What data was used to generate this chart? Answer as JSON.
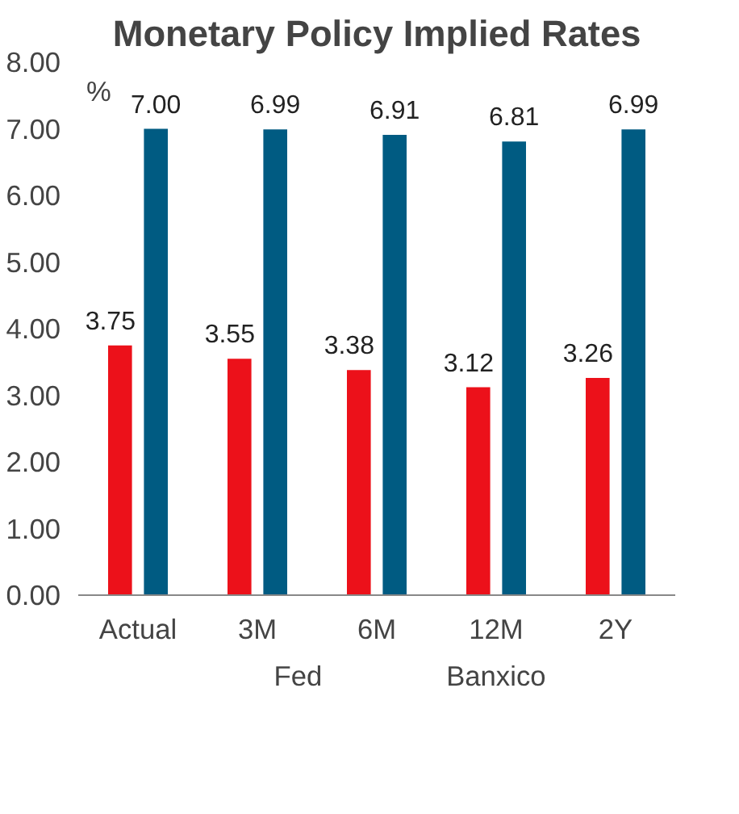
{
  "chart_data": {
    "type": "bar",
    "title": "Monetary Policy Implied Rates",
    "ylabel": "%",
    "categories": [
      "Actual",
      "3M",
      "6M",
      "12M",
      "2Y"
    ],
    "series": [
      {
        "name": "Fed",
        "color": "#ec111a",
        "values": [
          3.75,
          3.55,
          3.38,
          3.12,
          3.26
        ],
        "value_labels": [
          "3.75",
          "3.55",
          "3.38",
          "3.12",
          "3.26"
        ]
      },
      {
        "name": "Banxico",
        "color": "#005b82",
        "values": [
          7.0,
          6.99,
          6.91,
          6.81,
          6.99
        ],
        "value_labels": [
          "7.00",
          "6.99",
          "6.91",
          "6.81",
          "6.99"
        ]
      }
    ],
    "ylim": [
      0,
      8
    ],
    "yticks": [
      {
        "value": 0,
        "label": "0.00"
      },
      {
        "value": 1,
        "label": "1.00"
      },
      {
        "value": 2,
        "label": "2.00"
      },
      {
        "value": 3,
        "label": "3.00"
      },
      {
        "value": 4,
        "label": "4.00"
      },
      {
        "value": 5,
        "label": "5.00"
      },
      {
        "value": 6,
        "label": "6.00"
      },
      {
        "value": 7,
        "label": "7.00"
      },
      {
        "value": 8,
        "label": "8.00"
      }
    ],
    "legend": "bottom"
  }
}
